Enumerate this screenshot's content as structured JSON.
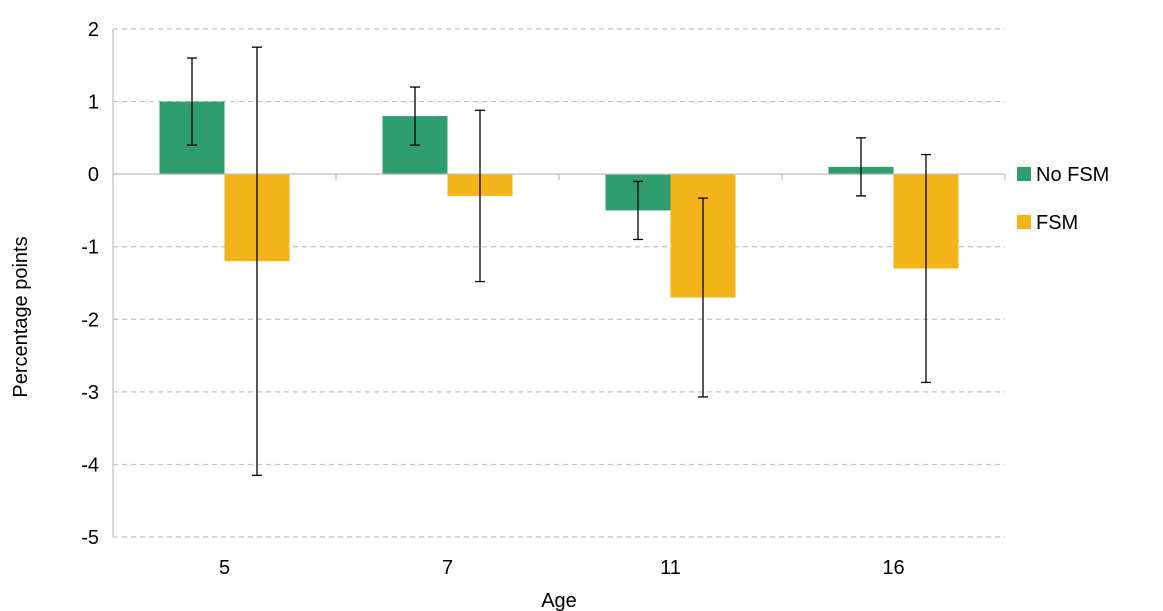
{
  "chart_data": {
    "type": "bar",
    "title": "",
    "xlabel": "Age",
    "ylabel": "Percentage points",
    "categories": [
      "5",
      "7",
      "11",
      "16"
    ],
    "ylim": [
      -5,
      2
    ],
    "yticks": [
      2,
      1,
      0,
      -1,
      -2,
      -3,
      -4,
      -5
    ],
    "grid": "horizontal-dashed",
    "legend_position": "right",
    "series": [
      {
        "name": "No FSM",
        "color": "#2e9e6e",
        "values": [
          1.0,
          0.8,
          -0.5,
          0.1
        ],
        "error_low": [
          0.4,
          0.4,
          -0.9,
          -0.3
        ],
        "error_high": [
          1.6,
          1.2,
          -0.1,
          0.5
        ]
      },
      {
        "name": "FSM",
        "color": "#f2b418",
        "values": [
          -1.2,
          -0.3,
          -1.7,
          -1.3
        ],
        "error_low": [
          -4.15,
          -1.48,
          -3.07,
          -2.87
        ],
        "error_high": [
          1.75,
          0.88,
          -0.33,
          0.27
        ]
      }
    ]
  }
}
